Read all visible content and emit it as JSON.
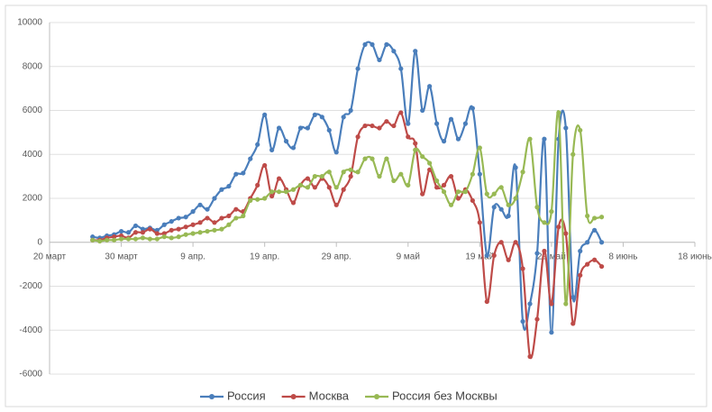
{
  "chart_data": {
    "type": "line",
    "x": [
      "03-26",
      "03-27",
      "03-28",
      "03-29",
      "03-30",
      "03-31",
      "04-01",
      "04-02",
      "04-03",
      "04-04",
      "04-05",
      "04-06",
      "04-07",
      "04-08",
      "04-09",
      "04-10",
      "04-11",
      "04-12",
      "04-13",
      "04-14",
      "04-15",
      "04-16",
      "04-17",
      "04-18",
      "04-19",
      "04-20",
      "04-21",
      "04-22",
      "04-23",
      "04-24",
      "04-25",
      "04-26",
      "04-27",
      "04-28",
      "04-29",
      "04-30",
      "05-01",
      "05-02",
      "05-03",
      "05-04",
      "05-05",
      "05-06",
      "05-07",
      "05-08",
      "05-09",
      "05-10",
      "05-11",
      "05-12",
      "05-13",
      "05-14",
      "05-15",
      "05-16",
      "05-17",
      "05-18",
      "05-19",
      "05-20",
      "05-21",
      "05-22",
      "05-23",
      "05-24",
      "05-25",
      "05-26",
      "05-27",
      "05-28",
      "05-29",
      "05-30",
      "05-31",
      "06-01",
      "06-02",
      "06-03",
      "06-04",
      "06-05"
    ],
    "series": [
      {
        "name": "Россия",
        "color": "#4a7ebb",
        "values": [
          250,
          200,
          300,
          350,
          500,
          450,
          750,
          600,
          650,
          550,
          800,
          950,
          1100,
          1150,
          1400,
          1700,
          1500,
          2000,
          2400,
          2550,
          3100,
          3150,
          3800,
          4450,
          5800,
          4200,
          5200,
          4600,
          4300,
          5200,
          5200,
          5800,
          5700,
          5100,
          4100,
          5700,
          6000,
          7900,
          9000,
          9000,
          8300,
          9000,
          8700,
          7900,
          5400,
          8700,
          6000,
          7100,
          5400,
          4600,
          5600,
          4700,
          5400,
          6100,
          3100,
          -600,
          1600,
          1500,
          1200,
          3400,
          -3600,
          -2800,
          -500,
          4700,
          -4100,
          4700,
          5200,
          -2500,
          -400,
          0,
          550,
          0
        ]
      },
      {
        "name": "Москва",
        "color": "#be4b48",
        "values": [
          100,
          100,
          200,
          250,
          300,
          200,
          450,
          450,
          600,
          400,
          400,
          550,
          600,
          700,
          800,
          900,
          1100,
          900,
          1100,
          1200,
          1500,
          1400,
          2000,
          2600,
          3500,
          2100,
          2900,
          2400,
          1800,
          2600,
          2900,
          2500,
          2900,
          2500,
          1700,
          2400,
          3000,
          4800,
          5300,
          5300,
          5200,
          5500,
          5300,
          5900,
          4800,
          4500,
          2200,
          3300,
          2500,
          2600,
          3000,
          2000,
          2400,
          1900,
          900,
          -2700,
          -600,
          0,
          -800,
          0,
          -1200,
          -5200,
          -3500,
          -400,
          -2800,
          700,
          400,
          -3700,
          -1500,
          -1000,
          -800,
          -1100
        ]
      },
      {
        "name": "Россия без Москвы",
        "color": "#98b954",
        "values": [
          100,
          50,
          100,
          100,
          150,
          150,
          150,
          200,
          150,
          150,
          250,
          200,
          250,
          350,
          400,
          450,
          500,
          550,
          600,
          800,
          1100,
          1200,
          1900,
          1950,
          2000,
          2300,
          2300,
          2300,
          2400,
          2600,
          2500,
          3000,
          3000,
          3200,
          2500,
          3200,
          3300,
          3200,
          3800,
          3800,
          3000,
          3800,
          2800,
          3100,
          2600,
          4200,
          3900,
          3600,
          2800,
          2300,
          1700,
          2300,
          2300,
          3100,
          4300,
          2200,
          2200,
          2500,
          1700,
          2000,
          3200,
          4700,
          1600,
          900,
          1400,
          5900,
          -2800,
          4000,
          5100,
          1200,
          1100,
          1150
        ]
      }
    ],
    "xlim": [
      "03-20",
      "06-18"
    ],
    "xticks": [
      {
        "value": "03-20",
        "label": "20 март"
      },
      {
        "value": "03-30",
        "label": "30 март"
      },
      {
        "value": "04-09",
        "label": "9 апр."
      },
      {
        "value": "04-19",
        "label": "19 апр."
      },
      {
        "value": "04-29",
        "label": "29 апр."
      },
      {
        "value": "05-09",
        "label": "9 май"
      },
      {
        "value": "05-19",
        "label": "19 май"
      },
      {
        "value": "05-29",
        "label": "29 май"
      },
      {
        "value": "06-08",
        "label": "8 июнь"
      },
      {
        "value": "06-18",
        "label": "18 июнь"
      }
    ],
    "ylim": [
      -6000,
      10000
    ],
    "yticks": [
      -6000,
      -4000,
      -2000,
      0,
      2000,
      4000,
      6000,
      8000,
      10000
    ],
    "grid": true,
    "legend": "bottom"
  }
}
